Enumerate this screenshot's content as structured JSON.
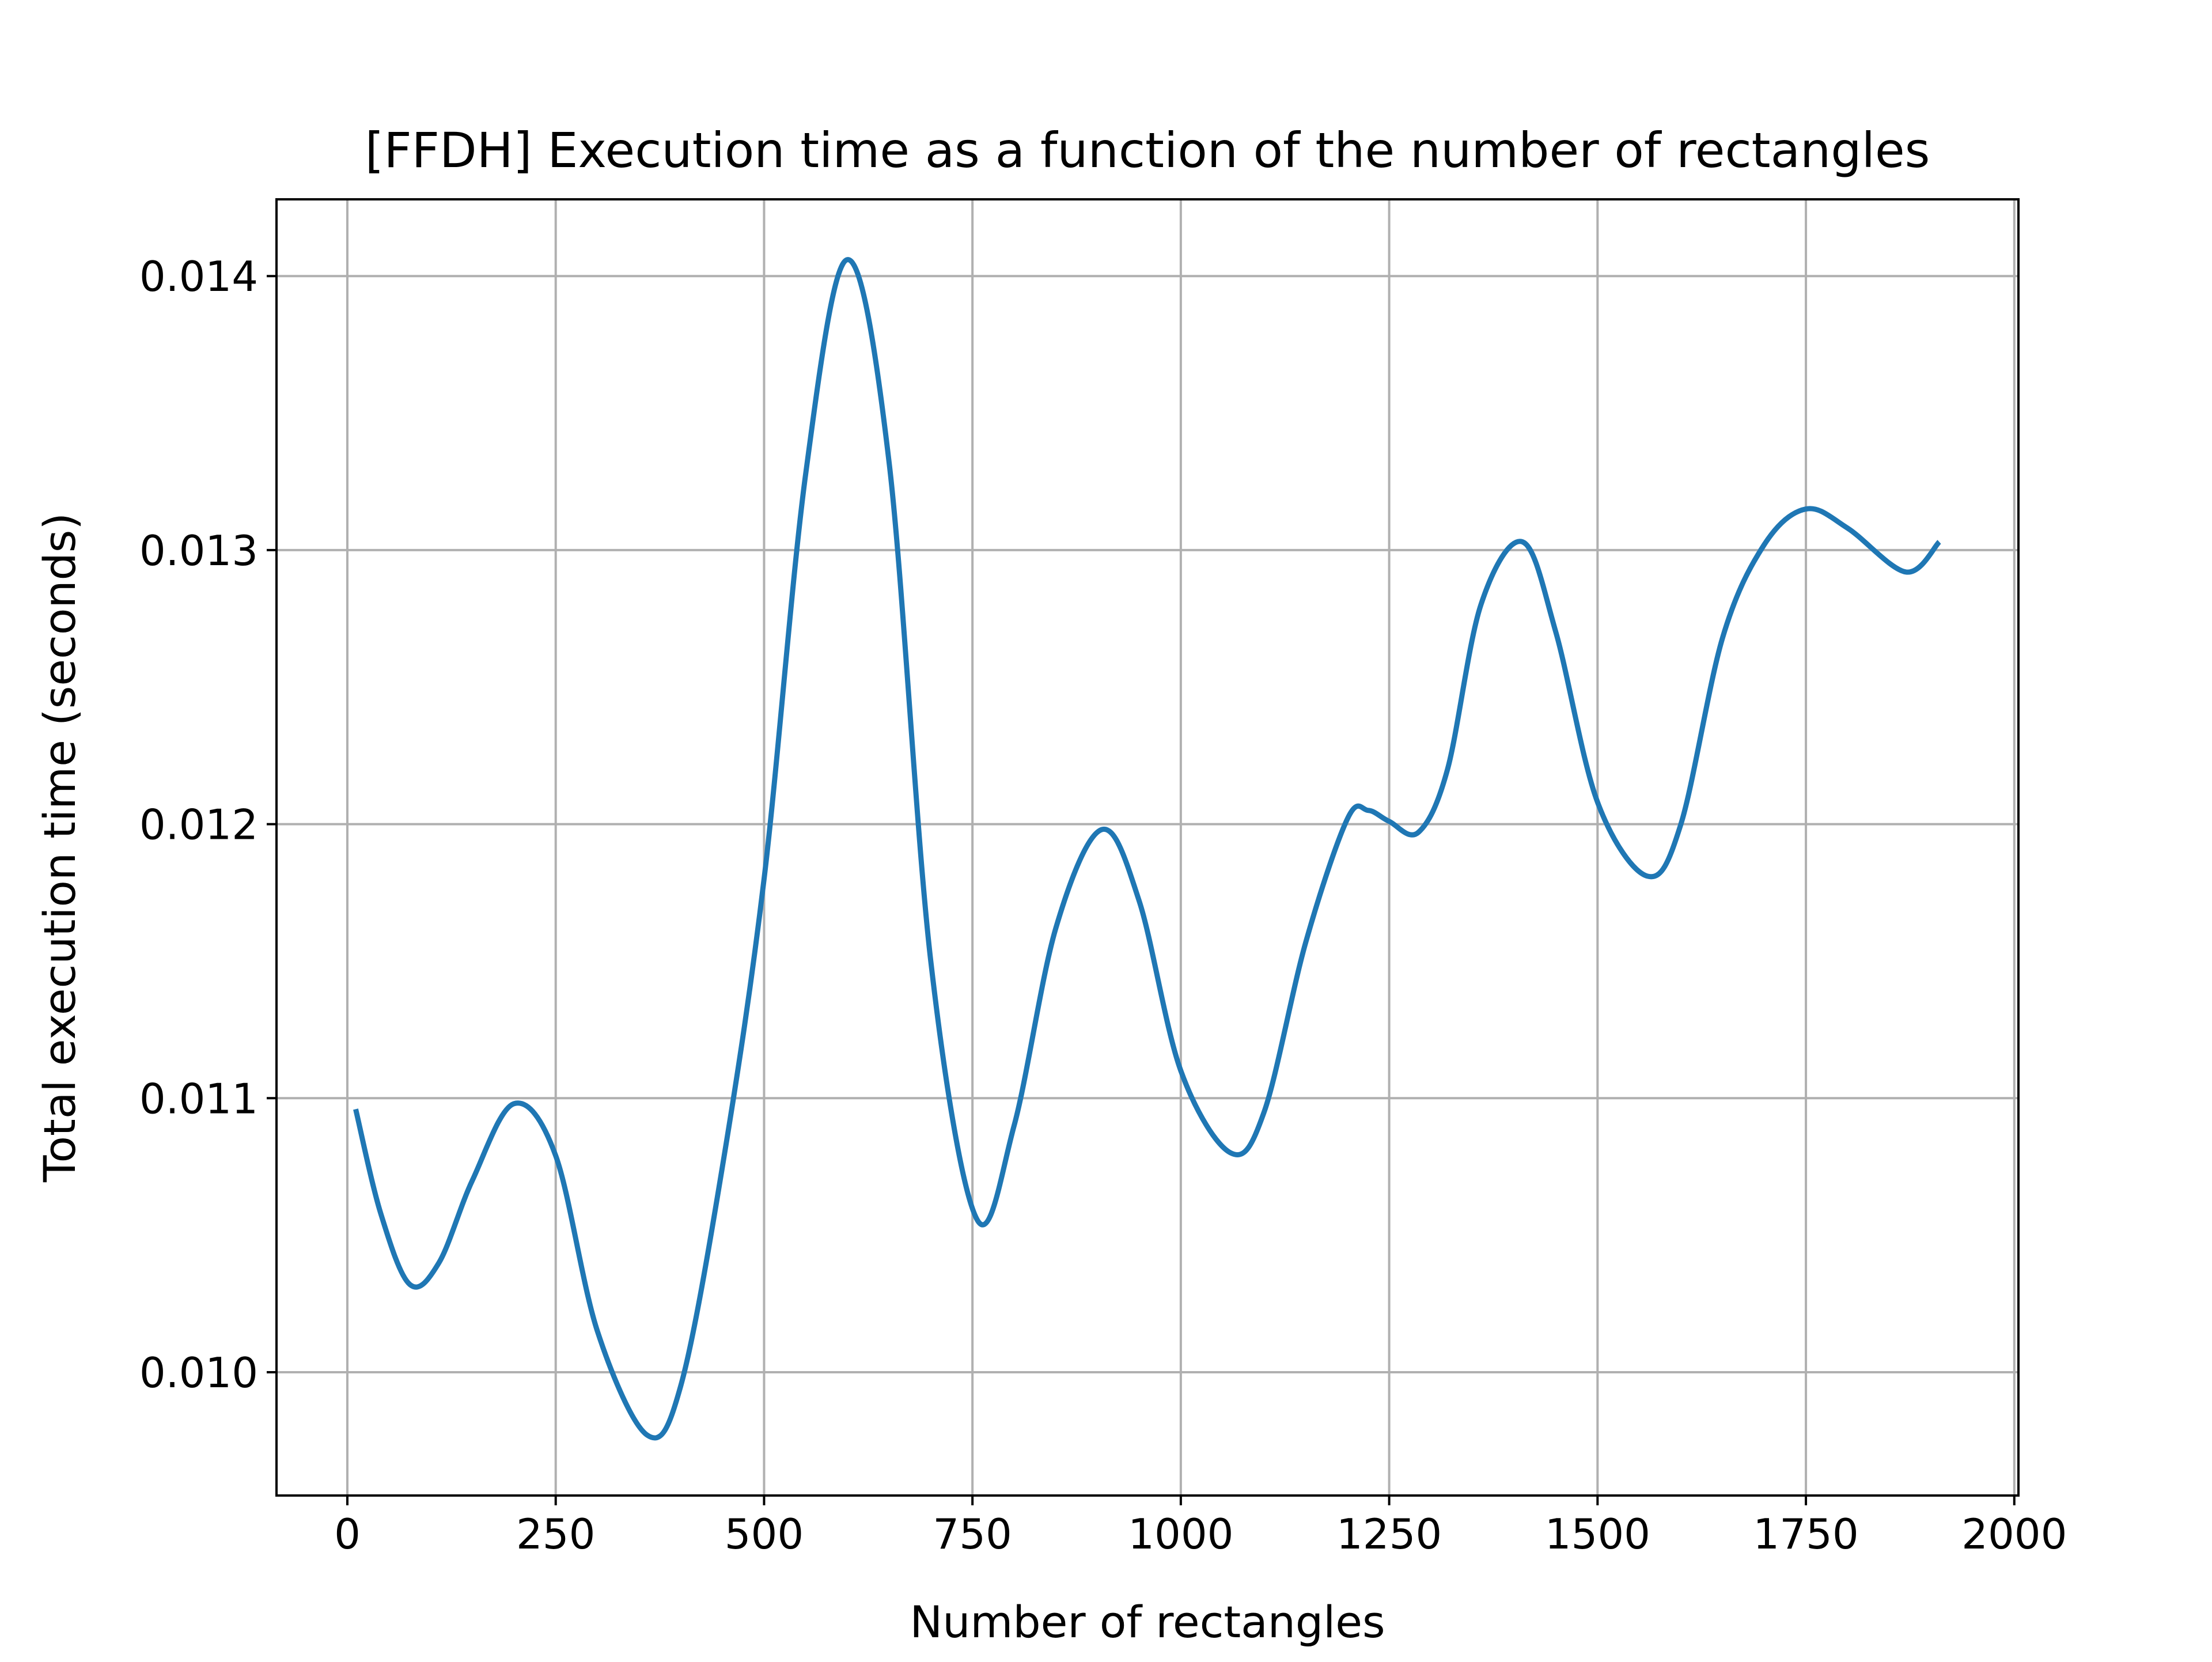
{
  "chart_data": {
    "type": "line",
    "title": "[FFDH] Execution time as a function of the number of rectangles",
    "xlabel": "Number of rectangles",
    "ylabel": "Total execution time (seconds)",
    "xlim": [
      -85,
      2005
    ],
    "ylim": [
      0.00955,
      0.01428
    ],
    "xticks": [
      0,
      250,
      500,
      750,
      1000,
      1250,
      1500,
      1750,
      2000
    ],
    "xtick_labels": [
      "0",
      "250",
      "500",
      "750",
      "1000",
      "1250",
      "1500",
      "1750",
      "2000"
    ],
    "yticks": [
      0.01,
      0.011,
      0.012,
      0.013,
      0.014
    ],
    "ytick_labels": [
      "0.010",
      "0.011",
      "0.012",
      "0.013",
      "0.014"
    ],
    "grid": true,
    "series": [
      {
        "color": "#1f77b4",
        "x": [
          10,
          40,
          75,
          110,
          150,
          200,
          250,
          300,
          360,
          400,
          450,
          500,
          550,
          600,
          650,
          700,
          755,
          800,
          850,
          905,
          950,
          1000,
          1060,
          1100,
          1150,
          1200,
          1225,
          1250,
          1285,
          1320,
          1360,
          1410,
          1450,
          1500,
          1560,
          1600,
          1650,
          1700,
          1750,
          1800,
          1870,
          1910
        ],
        "y": [
          0.01096,
          0.01058,
          0.01032,
          0.0104,
          0.0107,
          0.01098,
          0.01079,
          0.01015,
          0.00977,
          0.00995,
          0.01075,
          0.0118,
          0.01328,
          0.01406,
          0.01332,
          0.0115,
          0.01056,
          0.0109,
          0.01162,
          0.01198,
          0.01172,
          0.0111,
          0.0108,
          0.01095,
          0.01157,
          0.01202,
          0.01205,
          0.01201,
          0.01197,
          0.0122,
          0.0128,
          0.01303,
          0.0127,
          0.01208,
          0.01181,
          0.012,
          0.01268,
          0.01302,
          0.01315,
          0.01308,
          0.01292,
          0.01303
        ]
      }
    ]
  }
}
